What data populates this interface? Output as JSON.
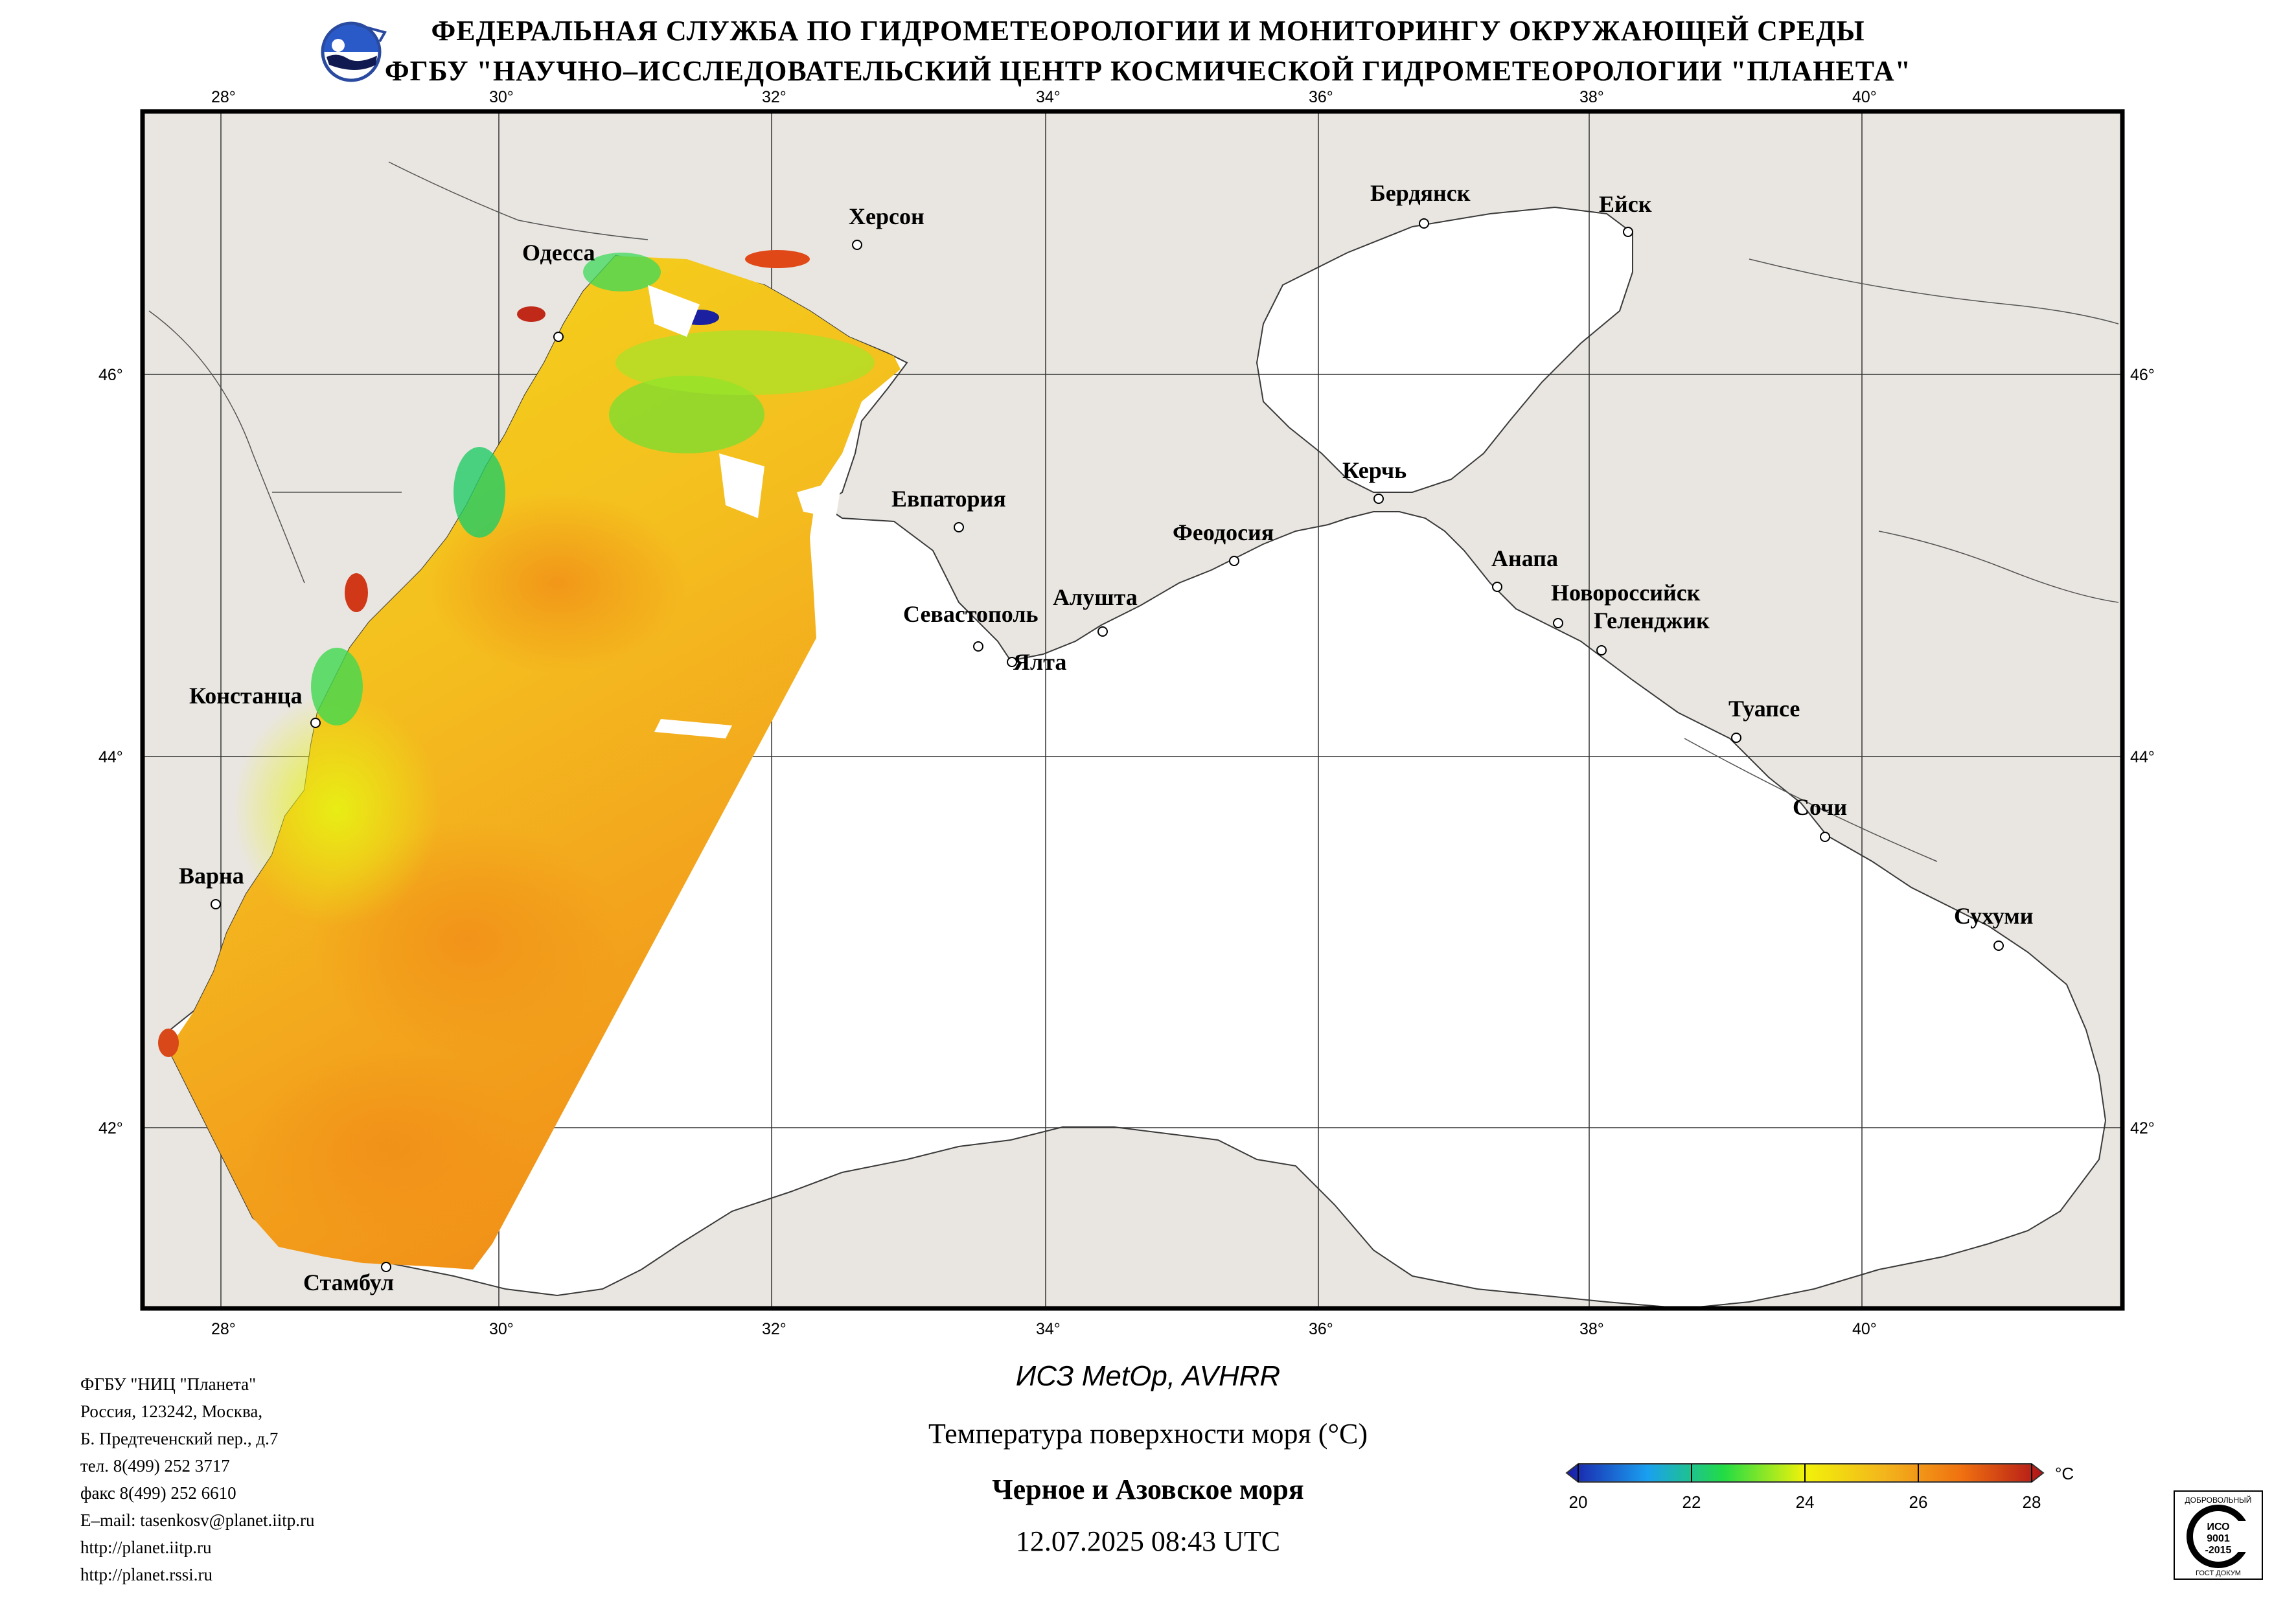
{
  "header": {
    "line1": "ФЕДЕРАЛЬНАЯ СЛУЖБА ПО ГИДРОМЕТЕОРОЛОГИИ И МОНИТОРИНГУ ОКРУЖАЮЩЕЙ СРЕДЫ",
    "line2": "ФГБУ \"НАУЧНО–ИССЛЕДОВАТЕЛЬСКИЙ ЦЕНТР КОСМИЧЕСКОЙ ГИДРОМЕТЕОРОЛОГИИ \"ПЛАНЕТА\""
  },
  "map": {
    "lon_ticks": [
      "28°",
      "30°",
      "32°",
      "34°",
      "36°",
      "38°",
      "40°"
    ],
    "lat_ticks": [
      "46°",
      "44°",
      "42°"
    ],
    "cities": [
      {
        "name": "Херсон"
      },
      {
        "name": "Одесса"
      },
      {
        "name": "Бердянск"
      },
      {
        "name": "Ейск"
      },
      {
        "name": "Евпатория"
      },
      {
        "name": "Керчь"
      },
      {
        "name": "Феодосия"
      },
      {
        "name": "Анапа"
      },
      {
        "name": "Новороссийск"
      },
      {
        "name": "Геленджик"
      },
      {
        "name": "Севастополь"
      },
      {
        "name": "Алушта"
      },
      {
        "name": "Ялта"
      },
      {
        "name": "Констанца"
      },
      {
        "name": "Туапсе"
      },
      {
        "name": "Сочи"
      },
      {
        "name": "Варна"
      },
      {
        "name": "Сухуми"
      },
      {
        "name": "Стамбул"
      }
    ],
    "colors": {
      "land": "#e9e6e1",
      "sea": "#ffffff",
      "border": "#000000"
    }
  },
  "org": {
    "lines": [
      "ФГБУ \"НИЦ \"Планета\"",
      "Россия, 123242, Москва,",
      "Б. Предтеченский пер., д.7",
      "тел. 8(499) 252 3717",
      "факс 8(499) 252 6610",
      "E–mail: tasenkosv@planet.iitp.ru",
      "http://planet.iitp.ru",
      "http://planet.rssi.ru"
    ]
  },
  "caption": {
    "satellite": "ИСЗ MetOp, AVHRR",
    "parameter": "Температура поверхности моря (°С)",
    "region": "Черное и Азовское моря",
    "datetime": "12.07.2025 08:43 UTC"
  },
  "legend": {
    "unit": "°С",
    "ticks": [
      "20",
      "22",
      "24",
      "26",
      "28"
    ],
    "stops": [
      "#1a1aa8",
      "#1aa0f0",
      "#22dc44",
      "#f2f20a",
      "#f3b41c",
      "#f07010",
      "#b01418"
    ]
  },
  "cert": {
    "top": "ДОБРОВОЛЬНЫЙ",
    "mid1": "ИСО",
    "mid2": "9001",
    "mid3": "-2015",
    "bottom": "ГОСТ ДОКУМ"
  }
}
